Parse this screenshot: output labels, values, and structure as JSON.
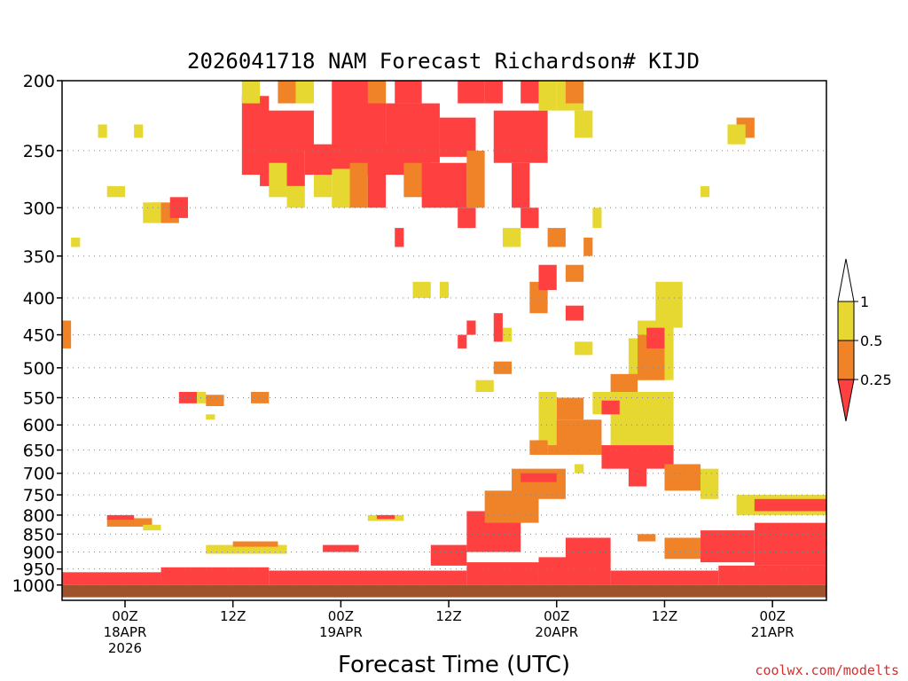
{
  "chart_data": {
    "type": "heatmap",
    "title": "2026041718 NAM Forecast Richardson# KIJD",
    "xlabel": "Forecast Time (UTC)",
    "ylabel": "",
    "credit": "coolwx.com/modelts",
    "y_scale": "log-pressure (hPa, inverted)",
    "ylim": [
      1050,
      200
    ],
    "xlim_hours_from_init": [
      -1,
      84
    ],
    "x_ticks": [
      {
        "hour": 6,
        "lines": [
          "00Z",
          "18APR",
          "2026"
        ]
      },
      {
        "hour": 18,
        "lines": [
          "12Z"
        ]
      },
      {
        "hour": 30,
        "lines": [
          "00Z",
          "19APR"
        ]
      },
      {
        "hour": 42,
        "lines": [
          "12Z"
        ]
      },
      {
        "hour": 54,
        "lines": [
          "00Z",
          "20APR"
        ]
      },
      {
        "hour": 66,
        "lines": [
          "12Z"
        ]
      },
      {
        "hour": 78,
        "lines": [
          "00Z",
          "21APR"
        ]
      }
    ],
    "y_ticks": [
      200,
      250,
      300,
      350,
      400,
      450,
      500,
      550,
      600,
      650,
      700,
      750,
      800,
      850,
      900,
      950,
      1000
    ],
    "grid": true,
    "legend": {
      "placement": "right",
      "levels": [
        {
          "label": "1",
          "color": "#ffffff"
        },
        {
          "label": "0.5",
          "color": "#e6d830"
        },
        {
          "label": "0.25",
          "color": "#f08228"
        },
        {
          "label": "",
          "color": "#ff4040"
        }
      ],
      "boundaries": [
        "1",
        "0.5",
        "0.25"
      ]
    },
    "colors": {
      "lt025": "#ff4040",
      "r025_05": "#f08228",
      "r05_1": "#e6d830",
      "ground": "#a0522d"
    },
    "cells": [
      {
        "x": [
          -1,
          10
        ],
        "p": [
          960,
          1000
        ],
        "c": "lt025"
      },
      {
        "x": [
          10,
          22
        ],
        "p": [
          945,
          1000
        ],
        "c": "lt025"
      },
      {
        "x": [
          22,
          44
        ],
        "p": [
          955,
          1000
        ],
        "c": "lt025"
      },
      {
        "x": [
          44,
          52
        ],
        "p": [
          930,
          1000
        ],
        "c": "lt025"
      },
      {
        "x": [
          52,
          60
        ],
        "p": [
          915,
          1000
        ],
        "c": "lt025"
      },
      {
        "x": [
          60,
          72
        ],
        "p": [
          955,
          1000
        ],
        "c": "lt025"
      },
      {
        "x": [
          72,
          84
        ],
        "p": [
          940,
          1000
        ],
        "c": "lt025"
      },
      {
        "x": [
          -1,
          84
        ],
        "p": [
          1000,
          1040
        ],
        "c": "ground"
      },
      {
        "x": [
          4,
          9
        ],
        "p": [
          808,
          830
        ],
        "c": "r025_05"
      },
      {
        "x": [
          8,
          10
        ],
        "p": [
          825,
          840
        ],
        "c": "r05_1"
      },
      {
        "x": [
          4,
          7
        ],
        "p": [
          800,
          812
        ],
        "c": "lt025"
      },
      {
        "x": [
          15,
          24
        ],
        "p": [
          880,
          905
        ],
        "c": "r05_1"
      },
      {
        "x": [
          18,
          23
        ],
        "p": [
          870,
          885
        ],
        "c": "r025_05"
      },
      {
        "x": [
          33,
          37
        ],
        "p": [
          800,
          815
        ],
        "c": "r05_1"
      },
      {
        "x": [
          34,
          36
        ],
        "p": [
          800,
          810
        ],
        "c": "lt025"
      },
      {
        "x": [
          44,
          50
        ],
        "p": [
          790,
          900
        ],
        "c": "lt025"
      },
      {
        "x": [
          46,
          52
        ],
        "p": [
          740,
          820
        ],
        "c": "r025_05"
      },
      {
        "x": [
          49,
          55
        ],
        "p": [
          690,
          760
        ],
        "c": "r025_05"
      },
      {
        "x": [
          50,
          54
        ],
        "p": [
          700,
          720
        ],
        "c": "lt025"
      },
      {
        "x": [
          53,
          59
        ],
        "p": [
          590,
          660
        ],
        "c": "r025_05"
      },
      {
        "x": [
          54,
          57
        ],
        "p": [
          550,
          590
        ],
        "c": "r025_05"
      },
      {
        "x": [
          52,
          54
        ],
        "p": [
          540,
          640
        ],
        "c": "r05_1"
      },
      {
        "x": [
          58,
          60
        ],
        "p": [
          540,
          580
        ],
        "c": "r05_1"
      },
      {
        "x": [
          59,
          67
        ],
        "p": [
          640,
          690
        ],
        "c": "lt025"
      },
      {
        "x": [
          62,
          64
        ],
        "p": [
          650,
          730
        ],
        "c": "lt025"
      },
      {
        "x": [
          60,
          67
        ],
        "p": [
          540,
          640
        ],
        "c": "r05_1"
      },
      {
        "x": [
          62,
          64
        ],
        "p": [
          455,
          520
        ],
        "c": "r05_1"
      },
      {
        "x": [
          63,
          67
        ],
        "p": [
          430,
          520
        ],
        "c": "r05_1"
      },
      {
        "x": [
          65,
          68
        ],
        "p": [
          380,
          440
        ],
        "c": "r05_1"
      },
      {
        "x": [
          63,
          66
        ],
        "p": [
          450,
          520
        ],
        "c": "r025_05"
      },
      {
        "x": [
          64,
          66
        ],
        "p": [
          440,
          470
        ],
        "c": "lt025"
      },
      {
        "x": [
          60,
          63
        ],
        "p": [
          510,
          540
        ],
        "c": "r025_05"
      },
      {
        "x": [
          66,
          70
        ],
        "p": [
          680,
          740
        ],
        "c": "r025_05"
      },
      {
        "x": [
          70,
          72
        ],
        "p": [
          690,
          760
        ],
        "c": "r05_1"
      },
      {
        "x": [
          74,
          84
        ],
        "p": [
          750,
          800
        ],
        "c": "r05_1"
      },
      {
        "x": [
          76,
          84
        ],
        "p": [
          760,
          790
        ],
        "c": "lt025"
      },
      {
        "x": [
          76,
          84
        ],
        "p": [
          820,
          940
        ],
        "c": "lt025"
      },
      {
        "x": [
          70,
          76
        ],
        "p": [
          840,
          930
        ],
        "c": "lt025"
      },
      {
        "x": [
          66,
          70
        ],
        "p": [
          860,
          920
        ],
        "c": "r025_05"
      },
      {
        "x": [
          63,
          65
        ],
        "p": [
          850,
          870
        ],
        "c": "r025_05"
      },
      {
        "x": [
          55,
          60
        ],
        "p": [
          860,
          930
        ],
        "c": "lt025"
      },
      {
        "x": [
          40,
          44
        ],
        "p": [
          880,
          940
        ],
        "c": "lt025"
      },
      {
        "x": [
          28,
          32
        ],
        "p": [
          880,
          900
        ],
        "c": "lt025"
      },
      {
        "x": [
          19,
          22
        ],
        "p": [
          210,
          270
        ],
        "c": "lt025"
      },
      {
        "x": [
          21,
          26
        ],
        "p": [
          240,
          280
        ],
        "c": "lt025"
      },
      {
        "x": [
          21,
          27
        ],
        "p": [
          220,
          250
        ],
        "c": "lt025"
      },
      {
        "x": [
          22,
          24
        ],
        "p": [
          260,
          290
        ],
        "c": "r05_1"
      },
      {
        "x": [
          24,
          26
        ],
        "p": [
          280,
          300
        ],
        "c": "r05_1"
      },
      {
        "x": [
          23,
          25
        ],
        "p": [
          200,
          215
        ],
        "c": "r025_05"
      },
      {
        "x": [
          19,
          21
        ],
        "p": [
          200,
          215
        ],
        "c": "r05_1"
      },
      {
        "x": [
          25,
          27
        ],
        "p": [
          200,
          215
        ],
        "c": "r05_1"
      },
      {
        "x": [
          26,
          40
        ],
        "p": [
          245,
          270
        ],
        "c": "lt025"
      },
      {
        "x": [
          27,
          29
        ],
        "p": [
          270,
          290
        ],
        "c": "r05_1"
      },
      {
        "x": [
          29,
          31
        ],
        "p": [
          265,
          300
        ],
        "c": "r05_1"
      },
      {
        "x": [
          29,
          35
        ],
        "p": [
          200,
          260
        ],
        "c": "lt025"
      },
      {
        "x": [
          33,
          35
        ],
        "p": [
          200,
          215
        ],
        "c": "r025_05"
      },
      {
        "x": [
          31,
          33
        ],
        "p": [
          260,
          300
        ],
        "c": "r025_05"
      },
      {
        "x": [
          33,
          35
        ],
        "p": [
          260,
          300
        ],
        "c": "lt025"
      },
      {
        "x": [
          36,
          39
        ],
        "p": [
          200,
          215
        ],
        "c": "lt025"
      },
      {
        "x": [
          35,
          41
        ],
        "p": [
          215,
          260
        ],
        "c": "lt025"
      },
      {
        "x": [
          37,
          40
        ],
        "p": [
          260,
          290
        ],
        "c": "r025_05"
      },
      {
        "x": [
          39,
          44
        ],
        "p": [
          260,
          300
        ],
        "c": "lt025"
      },
      {
        "x": [
          41,
          45
        ],
        "p": [
          225,
          255
        ],
        "c": "lt025"
      },
      {
        "x": [
          43,
          46
        ],
        "p": [
          200,
          215
        ],
        "c": "lt025"
      },
      {
        "x": [
          43,
          45
        ],
        "p": [
          300,
          320
        ],
        "c": "lt025"
      },
      {
        "x": [
          44,
          46
        ],
        "p": [
          250,
          300
        ],
        "c": "r025_05"
      },
      {
        "x": [
          46,
          48
        ],
        "p": [
          200,
          215
        ],
        "c": "lt025"
      },
      {
        "x": [
          47,
          53
        ],
        "p": [
          220,
          260
        ],
        "c": "lt025"
      },
      {
        "x": [
          50,
          52
        ],
        "p": [
          200,
          215
        ],
        "c": "lt025"
      },
      {
        "x": [
          52,
          54
        ],
        "p": [
          200,
          220
        ],
        "c": "r05_1"
      },
      {
        "x": [
          54,
          57
        ],
        "p": [
          200,
          220
        ],
        "c": "r05_1"
      },
      {
        "x": [
          55,
          57
        ],
        "p": [
          200,
          215
        ],
        "c": "r025_05"
      },
      {
        "x": [
          56,
          58
        ],
        "p": [
          220,
          240
        ],
        "c": "r05_1"
      },
      {
        "x": [
          49,
          51
        ],
        "p": [
          260,
          300
        ],
        "c": "lt025"
      },
      {
        "x": [
          50,
          52
        ],
        "p": [
          300,
          320
        ],
        "c": "lt025"
      },
      {
        "x": [
          53,
          55
        ],
        "p": [
          320,
          340
        ],
        "c": "r025_05"
      },
      {
        "x": [
          48,
          50
        ],
        "p": [
          320,
          340
        ],
        "c": "r05_1"
      },
      {
        "x": [
          51,
          53
        ],
        "p": [
          380,
          420
        ],
        "c": "r025_05"
      },
      {
        "x": [
          52,
          54
        ],
        "p": [
          360,
          390
        ],
        "c": "lt025"
      },
      {
        "x": [
          9,
          12
        ],
        "p": [
          295,
          315
        ],
        "c": "r025_05"
      },
      {
        "x": [
          8,
          10
        ],
        "p": [
          295,
          315
        ],
        "c": "r05_1"
      },
      {
        "x": [
          11,
          13
        ],
        "p": [
          290,
          310
        ],
        "c": "lt025"
      },
      {
        "x": [
          -1,
          0
        ],
        "p": [
          430,
          470
        ],
        "c": "r025_05"
      },
      {
        "x": [
          0,
          1
        ],
        "p": [
          330,
          340
        ],
        "c": "r05_1"
      },
      {
        "x": [
          3,
          4
        ],
        "p": [
          230,
          240
        ],
        "c": "r05_1"
      },
      {
        "x": [
          7,
          8
        ],
        "p": [
          230,
          240
        ],
        "c": "r05_1"
      },
      {
        "x": [
          4,
          6
        ],
        "p": [
          280,
          290
        ],
        "c": "r05_1"
      },
      {
        "x": [
          12,
          14
        ],
        "p": [
          540,
          560
        ],
        "c": "lt025"
      },
      {
        "x": [
          14,
          15
        ],
        "p": [
          540,
          560
        ],
        "c": "r05_1"
      },
      {
        "x": [
          15,
          17
        ],
        "p": [
          545,
          565
        ],
        "c": "r025_05"
      },
      {
        "x": [
          15,
          16
        ],
        "p": [
          580,
          590
        ],
        "c": "r05_1"
      },
      {
        "x": [
          20,
          22
        ],
        "p": [
          540,
          560
        ],
        "c": "r025_05"
      },
      {
        "x": [
          36,
          37
        ],
        "p": [
          320,
          340
        ],
        "c": "lt025"
      },
      {
        "x": [
          38,
          40
        ],
        "p": [
          380,
          400
        ],
        "c": "r05_1"
      },
      {
        "x": [
          41,
          42
        ],
        "p": [
          380,
          400
        ],
        "c": "r05_1"
      },
      {
        "x": [
          43,
          44
        ],
        "p": [
          450,
          470
        ],
        "c": "lt025"
      },
      {
        "x": [
          44,
          45
        ],
        "p": [
          430,
          450
        ],
        "c": "lt025"
      },
      {
        "x": [
          47,
          48
        ],
        "p": [
          420,
          460
        ],
        "c": "lt025"
      },
      {
        "x": [
          47,
          49
        ],
        "p": [
          490,
          510
        ],
        "c": "r025_05"
      },
      {
        "x": [
          45,
          47
        ],
        "p": [
          520,
          540
        ],
        "c": "r05_1"
      },
      {
        "x": [
          48,
          49
        ],
        "p": [
          440,
          460
        ],
        "c": "r05_1"
      },
      {
        "x": [
          55,
          57
        ],
        "p": [
          360,
          380
        ],
        "c": "r025_05"
      },
      {
        "x": [
          55,
          57
        ],
        "p": [
          410,
          430
        ],
        "c": "lt025"
      },
      {
        "x": [
          57,
          58
        ],
        "p": [
          330,
          350
        ],
        "c": "r025_05"
      },
      {
        "x": [
          58,
          59
        ],
        "p": [
          300,
          320
        ],
        "c": "r05_1"
      },
      {
        "x": [
          74,
          76
        ],
        "p": [
          225,
          240
        ],
        "c": "r025_05"
      },
      {
        "x": [
          73,
          75
        ],
        "p": [
          230,
          245
        ],
        "c": "r05_1"
      },
      {
        "x": [
          70,
          71
        ],
        "p": [
          280,
          290
        ],
        "c": "r05_1"
      },
      {
        "x": [
          56,
          58
        ],
        "p": [
          460,
          480
        ],
        "c": "r05_1"
      },
      {
        "x": [
          59,
          61
        ],
        "p": [
          555,
          580
        ],
        "c": "lt025"
      },
      {
        "x": [
          51,
          53
        ],
        "p": [
          630,
          660
        ],
        "c": "r025_05"
      },
      {
        "x": [
          56,
          57
        ],
        "p": [
          680,
          700
        ],
        "c": "r05_1"
      }
    ]
  }
}
